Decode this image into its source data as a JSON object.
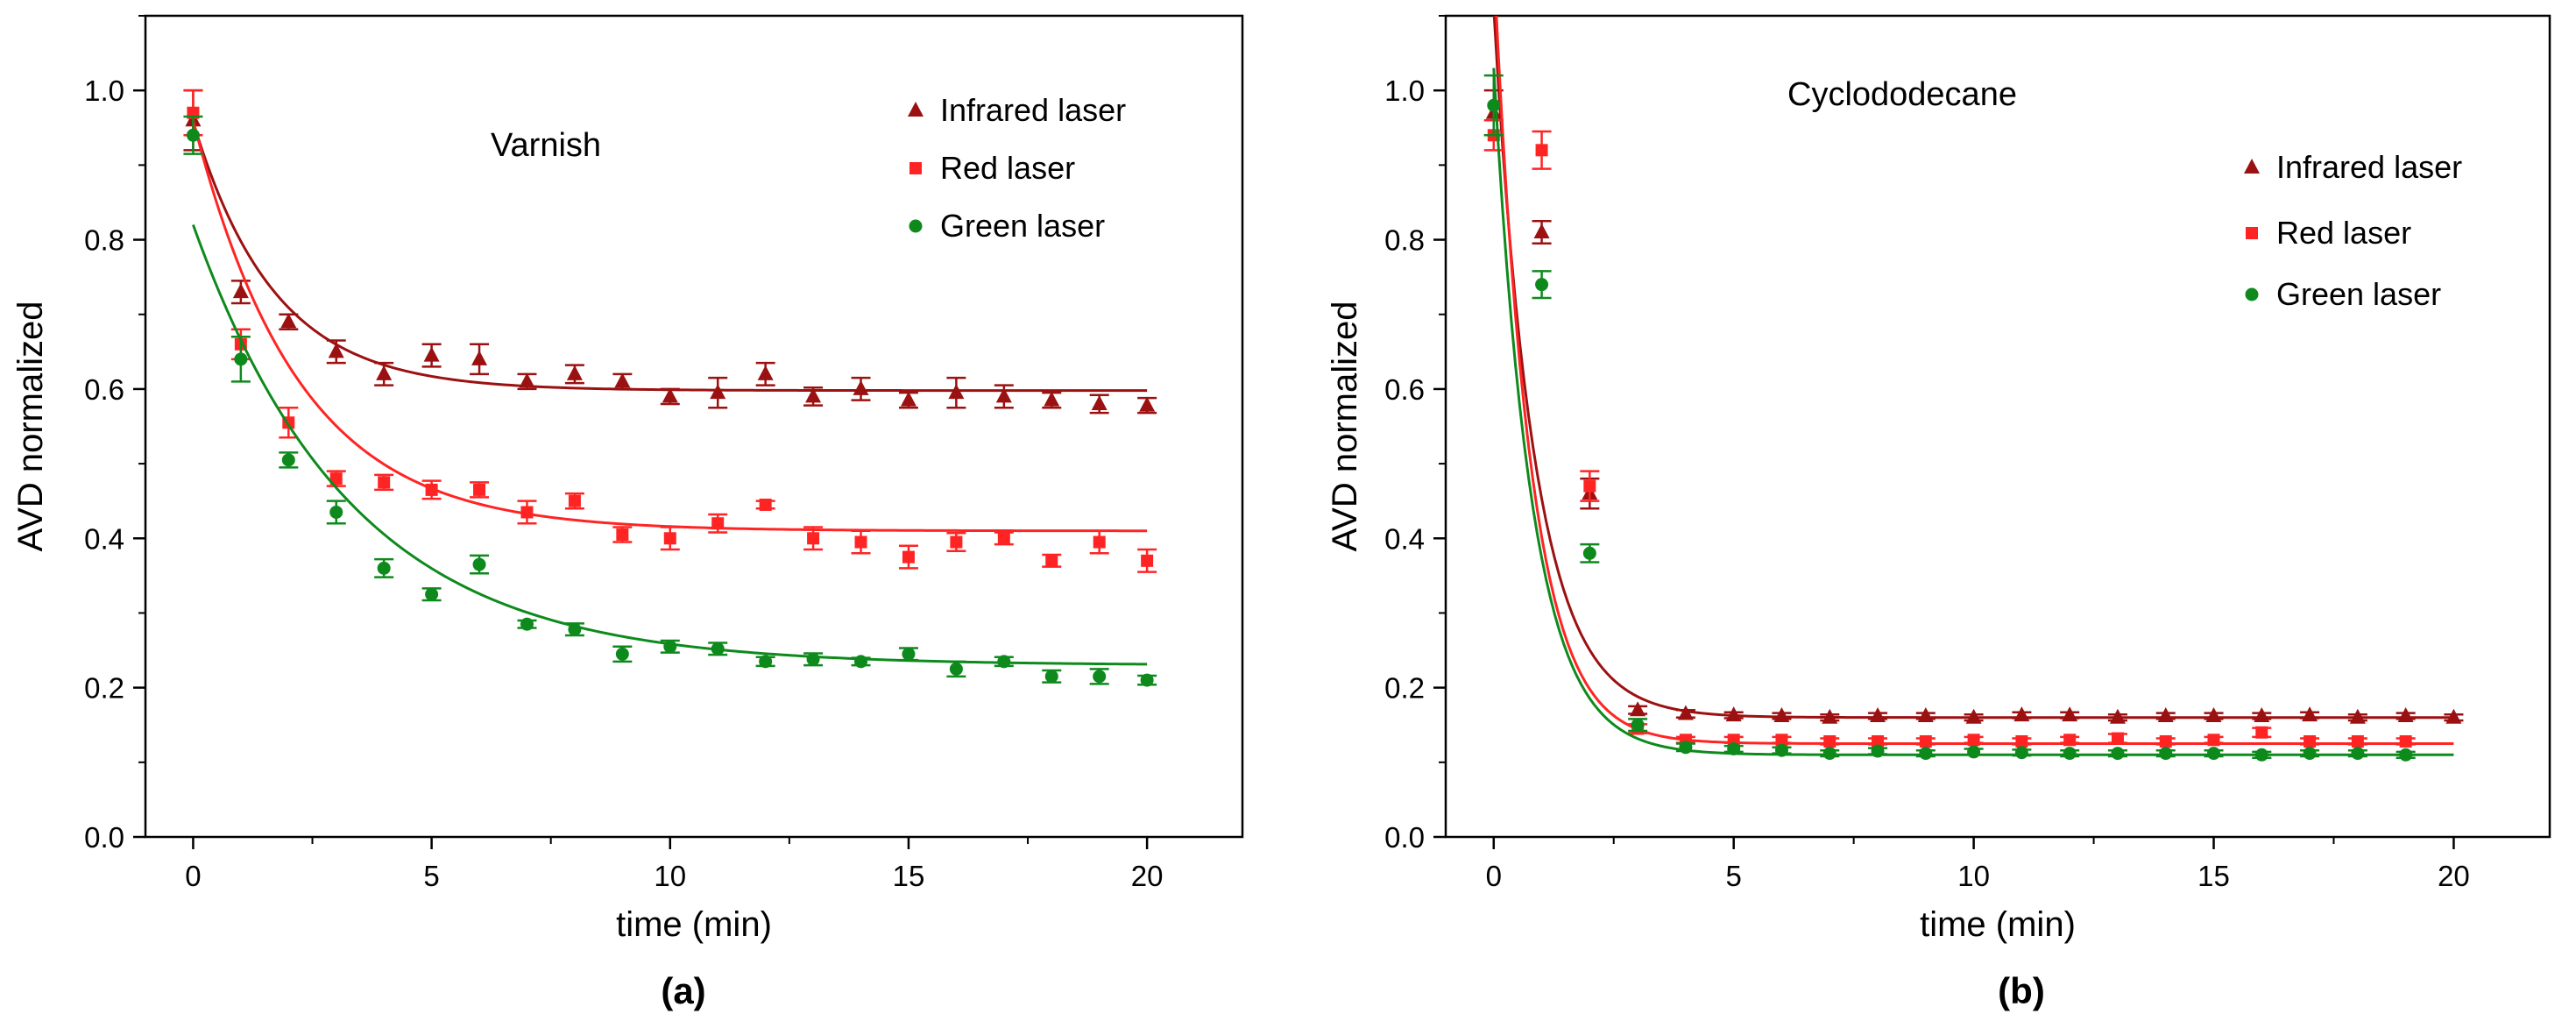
{
  "colors": {
    "infrared": "#9b1111",
    "red": "#ff2424",
    "green": "#0e8a1d",
    "axis": "#000000"
  },
  "chart_data": [
    {
      "id": "a",
      "type": "scatter",
      "panel_label": "(a)",
      "title": "Varnish",
      "xlabel": "time (min)",
      "ylabel": "AVD normalized",
      "xlim": [
        -1,
        22
      ],
      "ylim": [
        0,
        1.1
      ],
      "xticks": [
        0,
        5,
        10,
        15,
        20
      ],
      "yticks": [
        0.0,
        0.2,
        0.4,
        0.6,
        0.8,
        1.0
      ],
      "ytick_labels": [
        "0.0",
        "0.2",
        "0.4",
        "0.6",
        "0.8",
        "1.0"
      ],
      "legend_position": "top-right",
      "series": [
        {
          "name": "Infrared laser",
          "color_key": "infrared",
          "marker": "triangle",
          "x": [
            0,
            1,
            2,
            3,
            4,
            5,
            6,
            7,
            8,
            9,
            10,
            11,
            12,
            13,
            14,
            15,
            16,
            17,
            18,
            19,
            20
          ],
          "y": [
            0.96,
            0.73,
            0.69,
            0.65,
            0.62,
            0.645,
            0.64,
            0.61,
            0.62,
            0.61,
            0.59,
            0.595,
            0.62,
            0.59,
            0.6,
            0.585,
            0.595,
            0.59,
            0.585,
            0.58,
            0.578
          ],
          "err": [
            0.04,
            0.015,
            0.01,
            0.015,
            0.015,
            0.015,
            0.02,
            0.01,
            0.012,
            0.01,
            0.01,
            0.02,
            0.015,
            0.012,
            0.015,
            0.01,
            0.02,
            0.015,
            0.01,
            0.012,
            0.01
          ],
          "fit": {
            "y0": 0.598,
            "A": 0.36,
            "tau": 1.7
          }
        },
        {
          "name": "Red laser",
          "color_key": "red",
          "marker": "square",
          "x": [
            0,
            1,
            2,
            3,
            4,
            5,
            6,
            7,
            8,
            9,
            10,
            11,
            12,
            13,
            14,
            15,
            16,
            17,
            18,
            19,
            20
          ],
          "y": [
            0.97,
            0.66,
            0.555,
            0.48,
            0.475,
            0.465,
            0.465,
            0.435,
            0.45,
            0.405,
            0.4,
            0.42,
            0.445,
            0.4,
            0.395,
            0.375,
            0.395,
            0.4,
            0.37,
            0.395,
            0.37
          ],
          "err": [
            0.03,
            0.02,
            0.02,
            0.01,
            0.01,
            0.012,
            0.01,
            0.015,
            0.01,
            0.01,
            0.015,
            0.012,
            0.005,
            0.015,
            0.015,
            0.015,
            0.012,
            0.008,
            0.008,
            0.015,
            0.015
          ],
          "fit": {
            "y0": 0.41,
            "A": 0.55,
            "tau": 2.2
          }
        },
        {
          "name": "Green laser",
          "color_key": "green",
          "marker": "circle",
          "x": [
            0,
            1,
            2,
            3,
            4,
            5,
            6,
            7,
            8,
            9,
            10,
            11,
            12,
            13,
            14,
            15,
            16,
            17,
            18,
            19,
            20
          ],
          "y": [
            0.94,
            0.64,
            0.505,
            0.435,
            0.36,
            0.325,
            0.365,
            0.285,
            0.278,
            0.245,
            0.255,
            0.252,
            0.235,
            0.238,
            0.235,
            0.245,
            0.225,
            0.235,
            0.215,
            0.215,
            0.21
          ],
          "err": [
            0.025,
            0.03,
            0.01,
            0.015,
            0.012,
            0.008,
            0.012,
            0.005,
            0.008,
            0.01,
            0.008,
            0.008,
            0.006,
            0.008,
            0.005,
            0.008,
            0.01,
            0.006,
            0.008,
            0.01,
            0.006
          ],
          "fit": {
            "y0": 0.23,
            "A": 0.59,
            "tau": 3.3
          }
        }
      ]
    },
    {
      "id": "b",
      "type": "scatter",
      "panel_label": "(b)",
      "title": "Cyclododecane",
      "xlabel": "time (min)",
      "ylabel": "AVD normalized",
      "xlim": [
        -1,
        22
      ],
      "ylim": [
        0,
        1.1
      ],
      "xticks": [
        0,
        5,
        10,
        15,
        20
      ],
      "yticks": [
        0.0,
        0.2,
        0.4,
        0.6,
        0.8,
        1.0
      ],
      "ytick_labels": [
        "0.0",
        "0.2",
        "0.4",
        "0.6",
        "0.8",
        "1.0"
      ],
      "legend_position": "top-right",
      "series": [
        {
          "name": "Infrared laser",
          "color_key": "infrared",
          "marker": "triangle",
          "x": [
            0,
            1,
            2,
            3,
            4,
            5,
            6,
            7,
            8,
            9,
            10,
            11,
            12,
            13,
            14,
            15,
            16,
            17,
            18,
            19,
            20
          ],
          "y": [
            0.97,
            0.81,
            0.46,
            0.17,
            0.165,
            0.163,
            0.162,
            0.16,
            0.162,
            0.162,
            0.16,
            0.163,
            0.163,
            0.16,
            0.162,
            0.162,
            0.162,
            0.163,
            0.16,
            0.162,
            0.16
          ],
          "err": [
            0.03,
            0.015,
            0.02,
            0.005,
            0.005,
            0.004,
            0.004,
            0.004,
            0.004,
            0.004,
            0.004,
            0.004,
            0.004,
            0.004,
            0.004,
            0.004,
            0.004,
            0.004,
            0.004,
            0.004,
            0.004
          ],
          "fit": {
            "y0": 0.16,
            "A": 0.95,
            "tau": 0.85
          }
        },
        {
          "name": "Red laser",
          "color_key": "red",
          "marker": "square",
          "x": [
            0,
            1,
            2,
            3,
            4,
            5,
            6,
            7,
            8,
            9,
            10,
            11,
            12,
            13,
            14,
            15,
            16,
            17,
            18,
            19
          ],
          "y": [
            0.94,
            0.92,
            0.47,
            0.145,
            0.13,
            0.13,
            0.13,
            0.128,
            0.128,
            0.128,
            0.13,
            0.128,
            0.13,
            0.132,
            0.128,
            0.13,
            0.14,
            0.128,
            0.128,
            0.128
          ],
          "err": [
            0.02,
            0.025,
            0.02,
            0.006,
            0.004,
            0.004,
            0.004,
            0.004,
            0.004,
            0.004,
            0.004,
            0.004,
            0.004,
            0.006,
            0.004,
            0.004,
            0.006,
            0.004,
            0.004,
            0.004
          ],
          "fit": {
            "y0": 0.125,
            "A": 1.05,
            "tau": 0.75
          }
        },
        {
          "name": "Green laser",
          "color_key": "green",
          "marker": "circle",
          "x": [
            0,
            1,
            2,
            3,
            4,
            5,
            6,
            7,
            8,
            9,
            10,
            11,
            12,
            13,
            14,
            15,
            16,
            17,
            18,
            19
          ],
          "y": [
            0.98,
            0.74,
            0.38,
            0.15,
            0.12,
            0.118,
            0.116,
            0.112,
            0.115,
            0.112,
            0.114,
            0.113,
            0.112,
            0.112,
            0.112,
            0.112,
            0.11,
            0.112,
            0.112,
            0.11
          ],
          "err": [
            0.04,
            0.018,
            0.012,
            0.008,
            0.005,
            0.004,
            0.004,
            0.004,
            0.004,
            0.004,
            0.004,
            0.004,
            0.004,
            0.004,
            0.004,
            0.004,
            0.004,
            0.004,
            0.004,
            0.004
          ],
          "fit": {
            "y0": 0.11,
            "A": 0.92,
            "tau": 0.8
          }
        }
      ]
    }
  ]
}
